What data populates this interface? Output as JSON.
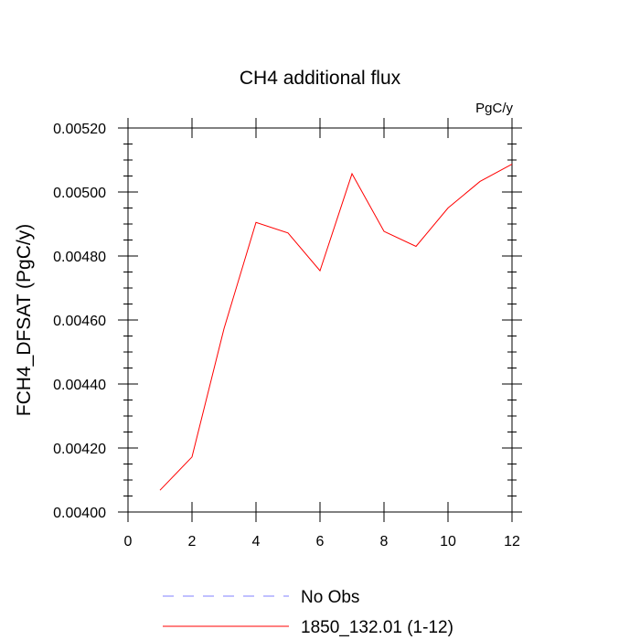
{
  "chart_data": {
    "type": "line",
    "title": "CH4 additional flux",
    "units_label": "PgC/y",
    "xlabel": "",
    "ylabel": "FCH4_DFSAT  (PgC/y)",
    "xlim": [
      0,
      12
    ],
    "ylim": [
      0.004,
      0.0052
    ],
    "x_ticks": [
      0,
      2,
      4,
      6,
      8,
      10,
      12
    ],
    "x_tick_labels": [
      "0",
      "2",
      "4",
      "6",
      "8",
      "10",
      "12"
    ],
    "y_ticks": [
      0.004,
      0.0042,
      0.0044,
      0.0046,
      0.0048,
      0.005,
      0.0052
    ],
    "y_tick_labels": [
      "0.00400",
      "0.00420",
      "0.00440",
      "0.00460",
      "0.00480",
      "0.00500",
      "0.00520"
    ],
    "grid": false,
    "legend_position": "bottom",
    "series": [
      {
        "name": "No Obs",
        "color": "#8080ff",
        "style": "dashed",
        "x": [],
        "values": []
      },
      {
        "name": "1850_132.01 (1-12)",
        "color": "#ff0000",
        "style": "solid",
        "x": [
          1,
          2,
          3,
          4,
          5,
          6,
          7,
          8,
          9,
          10,
          11,
          12
        ],
        "values": [
          0.004068,
          0.004172,
          0.004573,
          0.004905,
          0.004872,
          0.004754,
          0.005057,
          0.004877,
          0.00483,
          0.00495,
          0.005033,
          0.005087
        ]
      }
    ]
  }
}
